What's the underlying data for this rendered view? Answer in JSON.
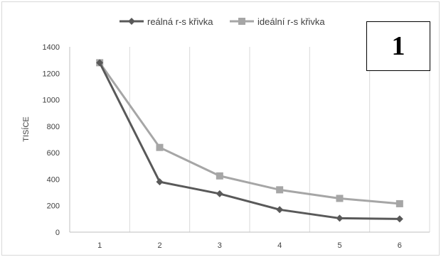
{
  "chart_data": {
    "type": "line",
    "title": "",
    "xlabel": "",
    "ylabel": "TISÍCE",
    "categories": [
      "1",
      "2",
      "3",
      "4",
      "5",
      "6"
    ],
    "ylim": [
      0,
      1400
    ],
    "yticks": [
      "0",
      "200",
      "400",
      "600",
      "800",
      "1000",
      "1200",
      "1400"
    ],
    "grid": "vertical",
    "legend_position": "top",
    "series": [
      {
        "name": "reálná r-s křivka",
        "values": [
          1280,
          380,
          290,
          170,
          105,
          100
        ],
        "color": "#595959",
        "marker": "diamond"
      },
      {
        "name": "ideální r-s křivka",
        "values": [
          1280,
          640,
          425,
          320,
          255,
          215
        ],
        "color": "#a6a6a6",
        "marker": "square"
      }
    ]
  },
  "badge": {
    "text": "1"
  }
}
